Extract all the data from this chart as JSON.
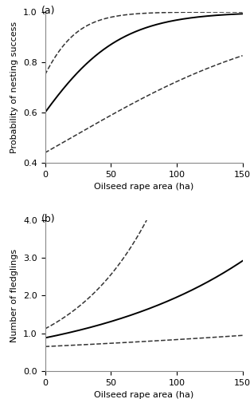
{
  "panel_a": {
    "label": "(a)",
    "xlabel": "Oilseed rape area (ha)",
    "ylabel": "Probability of nesting success",
    "xlim": [
      0,
      150
    ],
    "ylim": [
      0.4,
      1.0
    ],
    "yticks": [
      0.4,
      0.6,
      0.8,
      1.0
    ],
    "xticks": [
      0,
      50,
      100,
      150
    ],
    "fit_logit_intercept": 0.405,
    "fit_logit_slope": 0.03,
    "ci_upper_intercept": 1.1,
    "ci_upper_slope": 0.055,
    "ci_lower_intercept": -0.24,
    "ci_lower_slope": 0.012
  },
  "panel_b": {
    "label": "(b)",
    "xlabel": "Oilseed rape area (ha)",
    "ylabel": "Number of fledglings",
    "xlim": [
      0,
      150
    ],
    "ylim": [
      0.0,
      4.0
    ],
    "yticks": [
      0.0,
      1.0,
      2.0,
      3.0,
      4.0
    ],
    "xticks": [
      0,
      50,
      100,
      150
    ],
    "fit_log_intercept": -0.128,
    "fit_log_slope": 0.008,
    "ci_upper_log_intercept": 0.113,
    "ci_upper_log_slope": 0.0165,
    "ci_lower_log_intercept": -0.431,
    "ci_lower_log_slope": 0.0025
  },
  "line_color": "#000000",
  "ci_color": "#333333",
  "line_width": 1.4,
  "ci_linewidth": 1.1,
  "ci_linestyle": "dashed"
}
